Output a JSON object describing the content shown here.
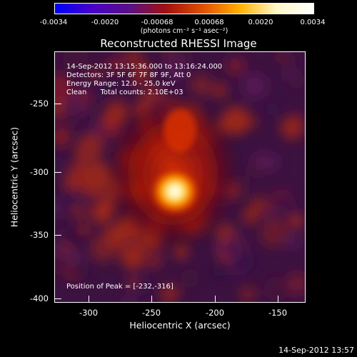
{
  "colorbar": {
    "tick_labels": [
      "-0.0034",
      "-0.0020",
      "-0.00068",
      "0.00068",
      "0.0020",
      "0.0034"
    ],
    "unit_label": "(photons cm⁻² s⁻¹ asec⁻²)"
  },
  "title": "Reconstructed RHESSI Image",
  "info": {
    "time_range": "14-Sep-2012 13:15:36.000 to 13:16:24.000",
    "detectors": "Detectors: 3F 5F 6F 7F 8F 9F, Att 0",
    "energy_range": "Energy Range: 12.0 - 25.0 keV",
    "clean_counts": "Clean      Total counts: 2.10E+03"
  },
  "peak_label": "Position of Peak = [-232,-316]",
  "axes": {
    "x_label": "Heliocentric X (arcsec)",
    "y_label": "Heliocentric Y (arcsec)",
    "x_ticks": [
      "-300",
      "-250",
      "-200",
      "-150"
    ],
    "y_ticks": [
      "-250",
      "-300",
      "-350",
      "-400"
    ]
  },
  "timestamp": "14-Sep-2012 13:57",
  "colors": {
    "colorbar_gradient": [
      "#0000ff",
      "#4a00c8",
      "#5a1088",
      "#a01010",
      "#e05000",
      "#ffb000",
      "#fff8c8",
      "#ffffff"
    ]
  }
}
